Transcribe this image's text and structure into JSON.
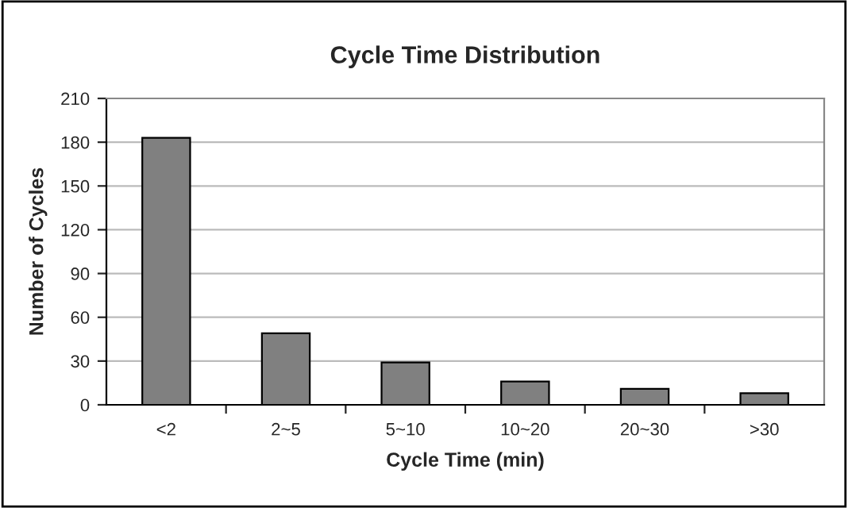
{
  "chart_data": {
    "type": "bar",
    "title": "Cycle Time Distribution",
    "xlabel": "Cycle Time (min)",
    "ylabel": "Number of Cycles",
    "categories": [
      "<2",
      "2~5",
      "5~10",
      "10~20",
      "20~30",
      ">30"
    ],
    "values": [
      183,
      49,
      29,
      16,
      11,
      8
    ],
    "color": "#808080",
    "ylim": [
      0,
      210
    ],
    "yticks": [
      0,
      30,
      60,
      90,
      120,
      150,
      180,
      210
    ],
    "grid": "y"
  }
}
